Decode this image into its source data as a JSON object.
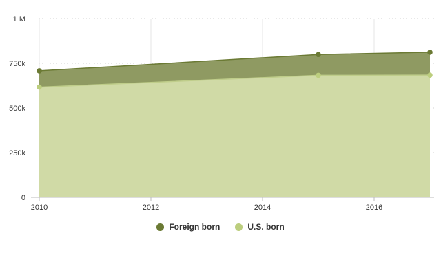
{
  "chart_data": {
    "type": "area",
    "stacked": true,
    "x": [
      2010,
      2015,
      2017
    ],
    "series": [
      {
        "name": "U.S. born",
        "values": [
          617000,
          683000,
          684000
        ],
        "color": "#bcce7e"
      },
      {
        "name": "Foreign born",
        "values": [
          91000,
          116000,
          128000
        ],
        "color": "#6b7a34"
      }
    ],
    "xlim": [
      2010,
      2017
    ],
    "ylim": [
      0,
      1000000
    ],
    "x_ticks": [
      "2010",
      "2012",
      "2014",
      "2016"
    ],
    "y_ticks": [
      "0",
      "250k",
      "500k",
      "750k",
      "1 M"
    ],
    "grid": true,
    "legend_position": "bottom",
    "title": "",
    "xlabel": "",
    "ylabel": ""
  },
  "legend": {
    "foreign_born": {
      "label": "Foreign born",
      "color": "#6b7a34"
    },
    "us_born": {
      "label": "U.S. born",
      "color": "#bcce7e"
    }
  }
}
